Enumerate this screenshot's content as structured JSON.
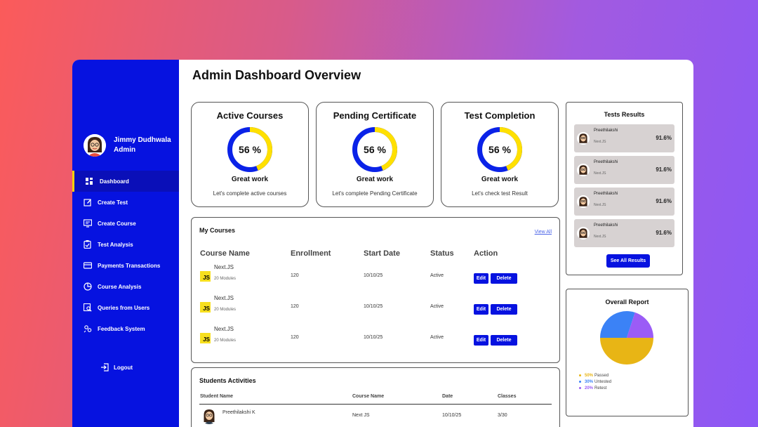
{
  "page_title": "Admin Dashboard Overview",
  "profile": {
    "name": "Jimmy Dudhwala",
    "role": "Admin"
  },
  "nav": [
    {
      "label": "Dashboard",
      "icon": "dashboard-icon",
      "active": true
    },
    {
      "label": "Create Test",
      "icon": "edit-icon"
    },
    {
      "label": "Create Course",
      "icon": "monitor-icon"
    },
    {
      "label": "Test Analysis",
      "icon": "clipboard-icon"
    },
    {
      "label": "Payments Transactions",
      "icon": "card-icon"
    },
    {
      "label": "Course Analysis",
      "icon": "pie-icon"
    },
    {
      "label": "Queries from Users",
      "icon": "search-doc-icon"
    },
    {
      "label": "Feedback System",
      "icon": "feedback-icon"
    }
  ],
  "logout_label": "Logout",
  "stats": [
    {
      "title": "Active Courses",
      "value": "56 %",
      "percent": 56,
      "caption": "Great work",
      "sub": "Let's complete active courses"
    },
    {
      "title": "Pending Certificate",
      "value": "56 %",
      "percent": 56,
      "caption": "Great work",
      "sub": "Let's complete Pending Certificate"
    },
    {
      "title": "Test Completion",
      "value": "56 %",
      "percent": 56,
      "caption": "Great work",
      "sub": "Let's check test Result"
    }
  ],
  "courses": {
    "heading": "My Courses",
    "view_all": "View All",
    "columns": [
      "Course Name",
      "Enrollment",
      "Start Date",
      "Status",
      "Action"
    ],
    "badge": "JS",
    "edit_label": "Edit",
    "delete_label": "Delete",
    "rows": [
      {
        "name": "Next.JS",
        "modules": "20 Modules",
        "enrollment": "120",
        "start": "10/10/25",
        "status": "Active"
      },
      {
        "name": "Next.JS",
        "modules": "20 Modules",
        "enrollment": "120",
        "start": "10/10/25",
        "status": "Active"
      },
      {
        "name": "Next.JS",
        "modules": "20 Modules",
        "enrollment": "120",
        "start": "10/10/25",
        "status": "Active"
      }
    ]
  },
  "activities": {
    "heading": "Students Activities",
    "columns": [
      "Student Name",
      "Course Name",
      "Date",
      "Classes"
    ],
    "rows": [
      {
        "student": "Preethilakshi K",
        "course": "Next JS",
        "date": "10/10/25",
        "classes": "3/30"
      }
    ]
  },
  "results": {
    "title": "Tests Results",
    "items": [
      {
        "name": "Preethilakshi",
        "course": "Next.JS",
        "score": "91.6%"
      },
      {
        "name": "Preethilakshi",
        "course": "Next.JS",
        "score": "91.6%"
      },
      {
        "name": "Preethilakshi",
        "course": "Next.JS",
        "score": "91.6%"
      },
      {
        "name": "Preethilakshi",
        "course": "Next.JS",
        "score": "91.6%"
      }
    ],
    "see_all": "See All Results"
  },
  "report": {
    "title": "Overall Report",
    "segments": [
      {
        "label": "Passed",
        "pct": "50%",
        "value": 50,
        "color": "#e8b515"
      },
      {
        "label": "Untested",
        "pct": "30%",
        "value": 30,
        "color": "#3b82f6"
      },
      {
        "label": "Retest",
        "pct": "20%",
        "value": 20,
        "color": "#9b5cf6"
      }
    ]
  },
  "colors": {
    "sidebar": "#0612e0",
    "accent_yellow": "#f6d000",
    "donut_track": "#0a22e8",
    "donut_fill": "#ffe000"
  }
}
